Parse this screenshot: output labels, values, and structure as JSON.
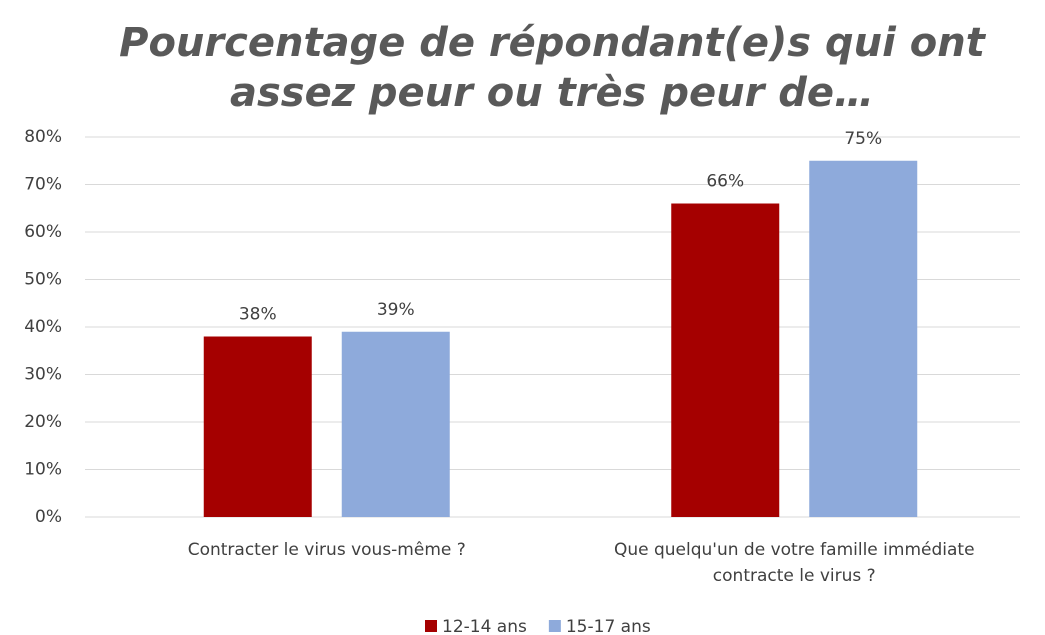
{
  "chart_data": {
    "type": "bar",
    "title": [
      "Pourcentage de répondant(e)s qui ont",
      "assez peur ou très peur de…"
    ],
    "categories": [
      "Contracter le virus vous-même ?",
      "Que quelqu'un de votre famille immédiate contracte le virus ?"
    ],
    "series": [
      {
        "name": "12-14 ans",
        "color": "#a50000",
        "values": [
          38,
          66
        ],
        "value_labels": [
          "38%",
          "66%"
        ]
      },
      {
        "name": "15-17 ans",
        "color": "#8eaadb",
        "values": [
          39,
          75
        ],
        "value_labels": [
          "39%",
          "75%"
        ]
      }
    ],
    "ylim": [
      0,
      80
    ],
    "yticks": [
      {
        "value": 0,
        "label": "0%"
      },
      {
        "value": 10,
        "label": "10%"
      },
      {
        "value": 20,
        "label": "20%"
      },
      {
        "value": 30,
        "label": "30%"
      },
      {
        "value": 40,
        "label": "40%"
      },
      {
        "value": 50,
        "label": "50%"
      },
      {
        "value": 60,
        "label": "60%"
      },
      {
        "value": 70,
        "label": "70%"
      },
      {
        "value": 80,
        "label": "80%"
      }
    ],
    "grid": true,
    "legend": "bottom"
  }
}
